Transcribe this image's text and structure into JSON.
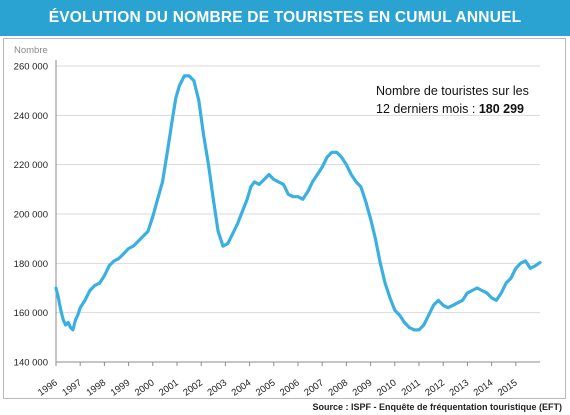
{
  "title": "ÉVOLUTION DU NOMBRE DE TOURISTES EN CUMUL ANNUEL",
  "source": "Source : ISPF - Enquête de fréquentation touristique (EFT)",
  "annotation": {
    "line1": "Nombre de touristes sur les",
    "line2_prefix": "12 derniers mois : ",
    "line2_value": "180 299"
  },
  "colors": {
    "title_bg": "#2aa3d3",
    "line": "#3ab0e2",
    "grid": "#d9d9d9",
    "frame": "#b9b9b9"
  },
  "chart_data": {
    "type": "line",
    "title": "ÉVOLUTION DU NOMBRE DE TOURISTES EN CUMUL ANNUEL",
    "ylabel": "Nombre",
    "xlabel": "",
    "ylim": [
      140000,
      260000
    ],
    "xlim": [
      1996,
      2016
    ],
    "grid": true,
    "yticks": [
      140000,
      160000,
      180000,
      200000,
      220000,
      240000,
      260000
    ],
    "ytick_labels": [
      "140 000",
      "160 000",
      "180 000",
      "200 000",
      "220 000",
      "240 000",
      "260 000"
    ],
    "xtick_labels": [
      "1996",
      "1997",
      "1998",
      "1999",
      "2000",
      "2001",
      "2002",
      "2003",
      "2004",
      "2005",
      "2006",
      "2007",
      "2008",
      "2009",
      "2010",
      "2011",
      "2012",
      "2013",
      "2014",
      "2015"
    ],
    "series": [
      {
        "values": [
          [
            1996.0,
            170000
          ],
          [
            1996.1,
            166000
          ],
          [
            1996.2,
            161000
          ],
          [
            1996.3,
            157000
          ],
          [
            1996.4,
            155000
          ],
          [
            1996.5,
            156000
          ],
          [
            1996.6,
            154000
          ],
          [
            1996.7,
            153000
          ],
          [
            1996.8,
            157000
          ],
          [
            1996.9,
            159000
          ],
          [
            1997.0,
            162000
          ],
          [
            1997.2,
            165000
          ],
          [
            1997.4,
            169000
          ],
          [
            1997.6,
            171000
          ],
          [
            1997.8,
            172000
          ],
          [
            1998.0,
            175000
          ],
          [
            1998.2,
            179000
          ],
          [
            1998.4,
            181000
          ],
          [
            1998.6,
            182000
          ],
          [
            1998.8,
            184000
          ],
          [
            1999.0,
            186000
          ],
          [
            1999.2,
            187000
          ],
          [
            1999.4,
            189000
          ],
          [
            1999.6,
            191000
          ],
          [
            1999.8,
            193000
          ],
          [
            2000.0,
            199000
          ],
          [
            2000.2,
            206000
          ],
          [
            2000.4,
            213000
          ],
          [
            2000.6,
            225000
          ],
          [
            2000.8,
            238000
          ],
          [
            2000.95,
            247000
          ],
          [
            2001.1,
            252000
          ],
          [
            2001.3,
            256000
          ],
          [
            2001.5,
            256000
          ],
          [
            2001.7,
            254000
          ],
          [
            2001.9,
            246000
          ],
          [
            2002.1,
            232000
          ],
          [
            2002.3,
            220000
          ],
          [
            2002.5,
            206000
          ],
          [
            2002.7,
            193000
          ],
          [
            2002.9,
            187000
          ],
          [
            2003.1,
            188000
          ],
          [
            2003.3,
            192000
          ],
          [
            2003.5,
            196000
          ],
          [
            2003.7,
            201000
          ],
          [
            2003.9,
            206000
          ],
          [
            2004.05,
            211000
          ],
          [
            2004.2,
            213000
          ],
          [
            2004.4,
            212000
          ],
          [
            2004.6,
            214000
          ],
          [
            2004.8,
            216000
          ],
          [
            2005.0,
            214000
          ],
          [
            2005.2,
            213000
          ],
          [
            2005.4,
            212000
          ],
          [
            2005.6,
            208000
          ],
          [
            2005.8,
            207000
          ],
          [
            2006.0,
            207000
          ],
          [
            2006.2,
            206000
          ],
          [
            2006.4,
            209000
          ],
          [
            2006.6,
            213000
          ],
          [
            2006.8,
            216000
          ],
          [
            2007.0,
            219000
          ],
          [
            2007.2,
            223000
          ],
          [
            2007.4,
            225000
          ],
          [
            2007.6,
            225000
          ],
          [
            2007.8,
            223000
          ],
          [
            2008.0,
            220000
          ],
          [
            2008.2,
            216000
          ],
          [
            2008.4,
            213000
          ],
          [
            2008.6,
            211000
          ],
          [
            2008.8,
            205000
          ],
          [
            2009.0,
            198000
          ],
          [
            2009.2,
            190000
          ],
          [
            2009.4,
            180000
          ],
          [
            2009.6,
            172000
          ],
          [
            2009.8,
            166000
          ],
          [
            2010.0,
            161000
          ],
          [
            2010.2,
            159000
          ],
          [
            2010.4,
            156000
          ],
          [
            2010.6,
            154000
          ],
          [
            2010.8,
            153000
          ],
          [
            2011.0,
            153000
          ],
          [
            2011.2,
            155000
          ],
          [
            2011.4,
            159000
          ],
          [
            2011.6,
            163000
          ],
          [
            2011.8,
            165000
          ],
          [
            2012.0,
            163000
          ],
          [
            2012.2,
            162000
          ],
          [
            2012.4,
            163000
          ],
          [
            2012.6,
            164000
          ],
          [
            2012.8,
            165000
          ],
          [
            2013.0,
            168000
          ],
          [
            2013.2,
            169000
          ],
          [
            2013.4,
            170000
          ],
          [
            2013.6,
            169000
          ],
          [
            2013.8,
            168000
          ],
          [
            2014.0,
            166000
          ],
          [
            2014.2,
            165000
          ],
          [
            2014.4,
            168000
          ],
          [
            2014.6,
            172000
          ],
          [
            2014.8,
            174000
          ],
          [
            2015.0,
            178000
          ],
          [
            2015.2,
            180000
          ],
          [
            2015.4,
            181000
          ],
          [
            2015.6,
            178000
          ],
          [
            2015.8,
            179000
          ],
          [
            2016.0,
            180299
          ]
        ]
      }
    ]
  }
}
